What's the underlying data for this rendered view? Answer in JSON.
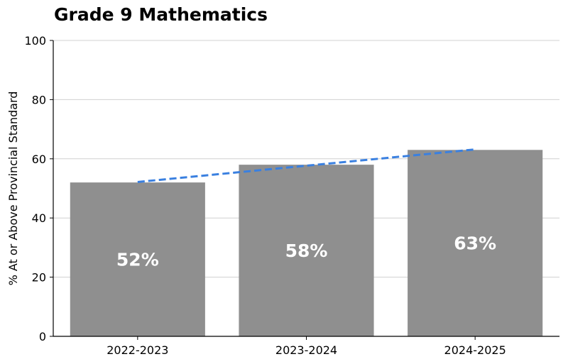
{
  "chart_data": {
    "type": "bar",
    "title": "Grade 9 Mathematics",
    "xlabel": "",
    "ylabel": "% At or Above Provincial Standard",
    "categories": [
      "2022-2023",
      "2023-2024",
      "2024-2025"
    ],
    "values": [
      52,
      58,
      63
    ],
    "data_labels": [
      "52%",
      "58%",
      "63%"
    ],
    "ylim": [
      0,
      100
    ],
    "yticks": [
      0,
      20,
      40,
      60,
      80,
      100
    ],
    "grid": "horizontal",
    "trendline": {
      "style": "dashed",
      "type": "linear"
    },
    "colors": {
      "bar": "#8f8f8f",
      "trend": "#3a80e0",
      "label": "#ffffff"
    }
  }
}
